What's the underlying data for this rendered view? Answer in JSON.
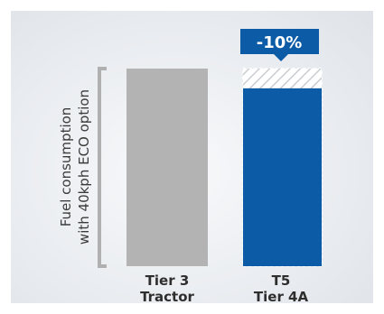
{
  "chart_data": {
    "type": "bar",
    "ylabel": [
      "Fuel consumption",
      "with 40kph ECO option"
    ],
    "categories": [
      [
        "Tier 3",
        "Tractor"
      ],
      [
        "T5",
        "Tier 4A"
      ]
    ],
    "values": [
      100,
      90
    ],
    "reference": 100,
    "ylim": [
      0,
      100
    ],
    "annotations": [
      {
        "category_index": 1,
        "text": "-10%"
      }
    ],
    "colors": {
      "bar_1": "#b3b3b3",
      "bar_2": "#0b5ba6",
      "hatch": "#c9ccd0",
      "bracket": "#b0b0b0",
      "callout": "#0b5ba6"
    },
    "grid": false,
    "legend": "none"
  }
}
